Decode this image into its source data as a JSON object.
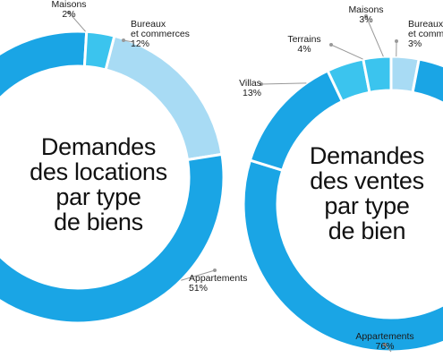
{
  "colors": {
    "background": "#ffffff",
    "text": "#1a1a1a",
    "leader": "#999999",
    "Appartements": "#1aa5e5",
    "Maisons": "#3bc4ee",
    "Bureaux et commerces": "#a8dbf4",
    "Villas": "#1aa5e5",
    "Terrains": "#3bc4ee",
    "separator": "#ffffff"
  },
  "charts": {
    "rental": {
      "title_lines": [
        "Demandes",
        "des locations",
        "par type",
        "de biens"
      ]
    },
    "sales": {
      "title_lines": [
        "Demandes",
        "des ventes",
        "par type",
        "de bien"
      ]
    }
  },
  "chart_data": [
    {
      "type": "pie",
      "title": "Demandes des locations par type de biens",
      "categories": [
        "Appartements",
        "Bureaux et commerces",
        "Maisons"
      ],
      "values": [
        51,
        12,
        2
      ],
      "labels": [
        {
          "name_lines": [
            "Appartements"
          ],
          "value": "51%"
        },
        {
          "name_lines": [
            "Bureaux",
            "et commerces"
          ],
          "value": "12%"
        },
        {
          "name_lines": [
            "Maisons"
          ],
          "value": "2%"
        }
      ]
    },
    {
      "type": "pie",
      "title": "Demandes des ventes par type de bien",
      "categories": [
        "Appartements",
        "Bureaux et commerces",
        "Maisons",
        "Terrains",
        "Villas"
      ],
      "values": [
        76,
        3,
        3,
        4,
        13
      ],
      "labels": [
        {
          "name_lines": [
            "Appartements"
          ],
          "value": "76%"
        },
        {
          "name_lines": [
            "Bureaux",
            "et comme"
          ],
          "value": "3%"
        },
        {
          "name_lines": [
            "Maisons"
          ],
          "value": "3%"
        },
        {
          "name_lines": [
            "Terrains"
          ],
          "value": "4%"
        },
        {
          "name_lines": [
            "Villas"
          ],
          "value": "13%"
        }
      ]
    }
  ]
}
